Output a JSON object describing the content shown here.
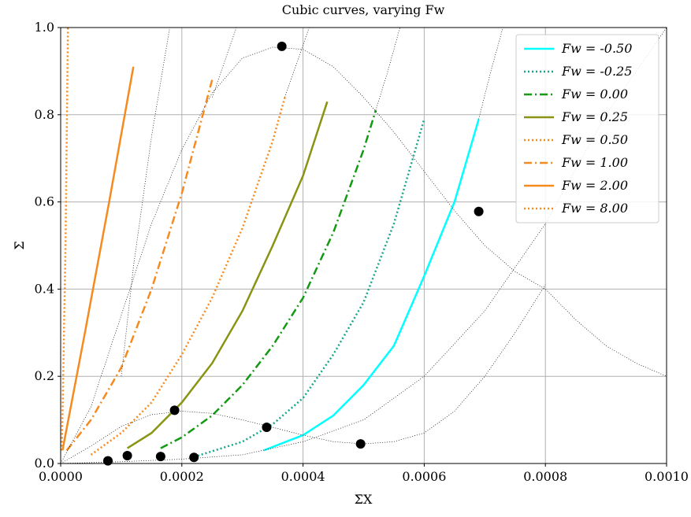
{
  "chart_data": {
    "type": "line",
    "title": "Cubic curves, varying Fw",
    "x_label": "Σ̄X",
    "y_label": "Σ̄",
    "xlim": [
      0,
      0.001
    ],
    "ylim": [
      0,
      1
    ],
    "xticks": [
      {
        "value": 0,
        "label": "0.0000"
      },
      {
        "value": 0.0002,
        "label": "0.0002"
      },
      {
        "value": 0.0004,
        "label": "0.0004"
      },
      {
        "value": 0.0006,
        "label": "0.0006"
      },
      {
        "value": 0.0008,
        "label": "0.0008"
      },
      {
        "value": 0.001,
        "label": "0.0010"
      }
    ],
    "yticks": [
      {
        "value": 0,
        "label": "0.0"
      },
      {
        "value": 0.2,
        "label": "0.2"
      },
      {
        "value": 0.4,
        "label": "0.4"
      },
      {
        "value": 0.6,
        "label": "0.6"
      },
      {
        "value": 0.8,
        "label": "0.8"
      },
      {
        "value": 1,
        "label": "1.0"
      }
    ],
    "grid": true,
    "legend": "upper right",
    "series": [
      {
        "name": "Fw = -0.50",
        "color": "#00ffff",
        "style": "solid",
        "x": [
          0.000335,
          0.0004,
          0.00045,
          0.0005,
          0.00055,
          0.0006,
          0.00065,
          0.00069
        ],
        "values": [
          0.03,
          0.065,
          0.11,
          0.18,
          0.27,
          0.43,
          0.6,
          0.79
        ]
      },
      {
        "name": "Fw = -0.25",
        "color": "#17a589",
        "style": "dotted",
        "x": [
          0.00022,
          0.0003,
          0.00035,
          0.0004,
          0.00045,
          0.0005,
          0.00055,
          0.0006
        ],
        "values": [
          0.015,
          0.05,
          0.09,
          0.15,
          0.25,
          0.37,
          0.55,
          0.79
        ]
      },
      {
        "name": "Fw = 0.00",
        "color": "#139a13",
        "style": "dashdot",
        "x": [
          0.000165,
          0.0002,
          0.00025,
          0.0003,
          0.00035,
          0.0004,
          0.00045,
          0.0005,
          0.00052
        ],
        "values": [
          0.035,
          0.06,
          0.11,
          0.18,
          0.27,
          0.38,
          0.53,
          0.72,
          0.81
        ]
      },
      {
        "name": "Fw = 0.25",
        "color": "#889412",
        "style": "solid",
        "x": [
          0.00011,
          0.00015,
          0.0002,
          0.00025,
          0.0003,
          0.00035,
          0.0004,
          0.00044
        ],
        "values": [
          0.035,
          0.07,
          0.14,
          0.23,
          0.35,
          0.5,
          0.66,
          0.83
        ]
      },
      {
        "name": "Fw = 0.50",
        "color": "#f58a1f",
        "style": "dotted",
        "x": [
          5e-05,
          0.0001,
          0.00015,
          0.0002,
          0.00025,
          0.0003,
          0.00035,
          0.00037
        ],
        "values": [
          0.02,
          0.07,
          0.14,
          0.25,
          0.38,
          0.54,
          0.74,
          0.84
        ]
      },
      {
        "name": "Fw = 1.00",
        "color": "#f58a1f",
        "style": "dashdot",
        "x": [
          1e-05,
          5e-05,
          0.0001,
          0.00015,
          0.0002,
          0.00025
        ],
        "values": [
          0.03,
          0.1,
          0.22,
          0.4,
          0.62,
          0.88
        ]
      },
      {
        "name": "Fw = 2.00",
        "color": "#f58a1f",
        "style": "solid",
        "x": [
          3e-06,
          4e-05,
          8e-05,
          0.00012
        ],
        "values": [
          0.03,
          0.3,
          0.6,
          0.91
        ]
      },
      {
        "name": "Fw = 8.00",
        "color": "#f58a1f",
        "style": "dotted",
        "x": [
          2e-06,
          8e-06,
          1.2e-05
        ],
        "values": [
          0.03,
          0.5,
          1.0
        ]
      },
      {
        "color": "#000000",
        "style": "guide",
        "x": [
          0,
          5e-05,
          0.0001,
          0.00015,
          0.0002,
          0.00025,
          0.0003,
          0.00035,
          0.0004,
          0.00045,
          0.0005,
          0.00055,
          0.0006,
          0.00065,
          0.0007,
          0.00075,
          0.0008,
          0.00085,
          0.0009,
          0.00095,
          0.001
        ],
        "values": [
          0,
          0.13,
          0.34,
          0.55,
          0.72,
          0.85,
          0.93,
          0.955,
          0.95,
          0.91,
          0.84,
          0.76,
          0.67,
          0.58,
          0.5,
          0.44,
          0.4,
          0.33,
          0.27,
          0.23,
          0.2
        ]
      },
      {
        "color": "#000000",
        "style": "guide",
        "x": [
          0,
          5e-05,
          0.0001,
          0.00015,
          0.0002,
          0.00025,
          0.0003,
          0.00035,
          0.0004,
          0.00045,
          0.0005,
          0.00055,
          0.0006,
          0.00065,
          0.0007,
          0.00075,
          0.0008
        ],
        "values": [
          0,
          0.04,
          0.085,
          0.112,
          0.12,
          0.115,
          0.1,
          0.083,
          0.065,
          0.05,
          0.045,
          0.05,
          0.07,
          0.12,
          0.2,
          0.3,
          0.41
        ]
      },
      {
        "color": "#000000",
        "style": "guide",
        "x": [
          0,
          0.0001,
          0.0002,
          0.0003,
          0.0004,
          0.0005,
          0.0006,
          0.0007,
          0.0008,
          0.0009,
          0.001
        ],
        "values": [
          0,
          0.004,
          0.01,
          0.02,
          0.05,
          0.1,
          0.2,
          0.35,
          0.55,
          0.8,
          1.0
        ]
      },
      {
        "color": "#000000",
        "style": "guide",
        "x": [
          0.0001,
          0.00012,
          0.00015,
          0.00018
        ],
        "values": [
          0.2,
          0.45,
          0.75,
          1.0
        ]
      },
      {
        "color": "#000000",
        "style": "guide",
        "x": [
          0.00025,
          0.00027,
          0.00029
        ],
        "values": [
          0.84,
          0.92,
          1.0
        ]
      },
      {
        "color": "#000000",
        "style": "guide",
        "x": [
          0.00037,
          0.00039,
          0.00041
        ],
        "values": [
          0.84,
          0.92,
          1.0
        ]
      },
      {
        "color": "#000000",
        "style": "guide",
        "x": [
          0.00052,
          0.00054,
          0.00056
        ],
        "values": [
          0.81,
          0.9,
          1.0
        ]
      },
      {
        "color": "#000000",
        "style": "guide",
        "x": [
          0.00069,
          0.00071,
          0.00073
        ],
        "values": [
          0.79,
          0.9,
          1.0
        ]
      }
    ],
    "points": {
      "color": "#000000",
      "x": [
        0.000365,
        0.00069,
        0.000188,
        0.00034,
        0.000495,
        0.00011,
        7.8e-05,
        0.000165,
        0.00022
      ],
      "values": [
        0.957,
        0.578,
        0.122,
        0.083,
        0.045,
        0.018,
        0.006,
        0.016,
        0.014
      ]
    }
  }
}
